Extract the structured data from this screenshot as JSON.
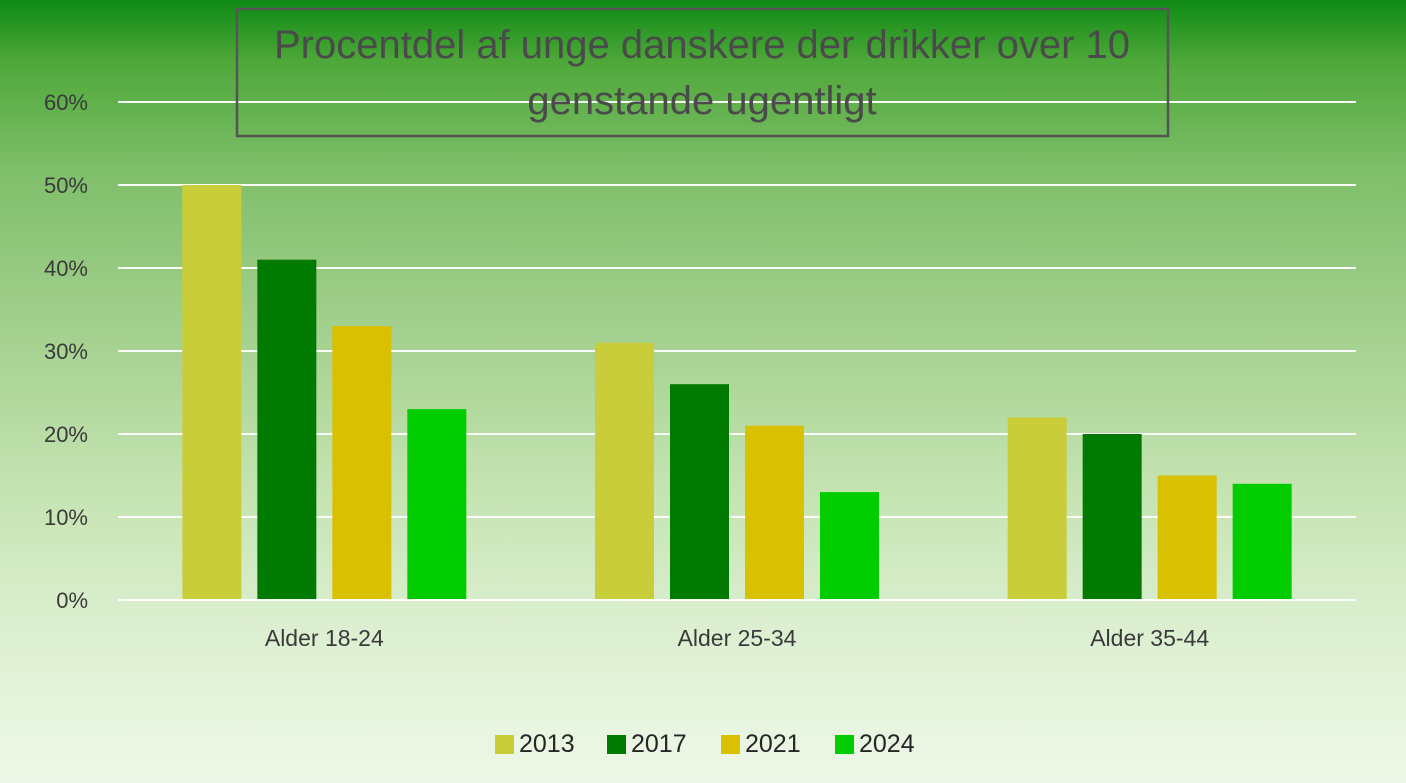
{
  "chart_data": {
    "type": "bar",
    "title_lines": [
      "Procentdel af unge danskere der drikker over 10",
      "genstande ugentligt"
    ],
    "categories": [
      "Alder 18-24",
      "Alder 25-34",
      "Alder 35-44"
    ],
    "series": [
      {
        "name": "2013",
        "color": "#c9cd3a",
        "values": [
          50,
          31,
          22
        ]
      },
      {
        "name": "2017",
        "color": "#007a00",
        "values": [
          41,
          26,
          20
        ]
      },
      {
        "name": "2021",
        "color": "#d9c000",
        "values": [
          33,
          21,
          15
        ]
      },
      {
        "name": "2024",
        "color": "#00cc00",
        "values": [
          23,
          13,
          14
        ]
      }
    ],
    "ylim": [
      0,
      60
    ],
    "yticks": [
      0,
      10,
      20,
      30,
      40,
      50,
      60
    ],
    "ytick_labels": [
      "0%",
      "10%",
      "20%",
      "30%",
      "40%",
      "50%",
      "60%"
    ],
    "grid": true,
    "legend_position": "bottom"
  }
}
